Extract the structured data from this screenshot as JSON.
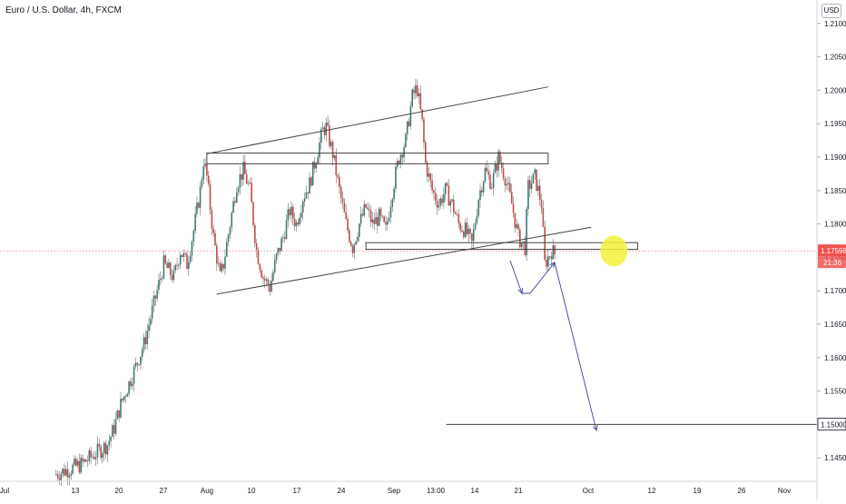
{
  "header": {
    "title": "Euro / U.S. Dollar, 4h, FXCM",
    "currency": "USD"
  },
  "colors": {
    "up": "#3c7a76",
    "down": "#c44a4a",
    "wick": "#555555",
    "drawing_line": "#444444",
    "arrow": "#3f3f9e",
    "highlight": "#f2f23a",
    "price_line": "#ef5350",
    "price_tag_bg": "#ef5350",
    "axis_text": "#131722"
  },
  "chart_data": {
    "type": "candlestick",
    "symbol": "EURUSD",
    "timeframe": "4h",
    "y_ticks": [
      "1.21000",
      "1.20500",
      "1.20000",
      "1.19500",
      "1.19000",
      "1.18500",
      "1.18000",
      "1.17500",
      "1.17000",
      "1.16500",
      "1.16000",
      "1.15500",
      "1.15000",
      "1.14500"
    ],
    "x_ticks": [
      "Jul",
      "13",
      "20",
      "27",
      "Aug",
      "10",
      "17",
      "24",
      "Sep",
      "13:00",
      "14",
      "21",
      "Oct",
      "12",
      "19",
      "26",
      "Nov"
    ],
    "ylim": [
      1.1415,
      1.2135
    ],
    "current_price": 1.17598,
    "current_price_label": "1.17598",
    "countdown_label": "21:36",
    "target_level": 1.15,
    "target_label": "1.15000",
    "price_path": [
      [
        0,
        1.1425
      ],
      [
        4,
        1.144
      ],
      [
        6,
        1.1455
      ],
      [
        8,
        1.147
      ],
      [
        9,
        1.1495
      ],
      [
        10,
        1.153
      ],
      [
        12,
        1.158
      ],
      [
        13.5,
        1.162
      ],
      [
        15,
        1.168
      ],
      [
        16.5,
        1.174
      ],
      [
        18,
        1.172
      ],
      [
        19,
        1.176
      ],
      [
        20,
        1.174
      ],
      [
        21,
        1.179
      ],
      [
        22,
        1.185
      ],
      [
        22.5,
        1.1895
      ],
      [
        23,
        1.187
      ],
      [
        24,
        1.178
      ],
      [
        25,
        1.172
      ],
      [
        25.5,
        1.174
      ],
      [
        26.5,
        1.18
      ],
      [
        27.5,
        1.186
      ],
      [
        28.5,
        1.188
      ],
      [
        29.5,
        1.185
      ],
      [
        30.5,
        1.176
      ],
      [
        31.5,
        1.172
      ],
      [
        32.5,
        1.1705
      ],
      [
        33.5,
        1.175
      ],
      [
        34.5,
        1.178
      ],
      [
        35.5,
        1.182
      ],
      [
        36.5,
        1.18
      ],
      [
        37.5,
        1.184
      ],
      [
        38.5,
        1.186
      ],
      [
        39.5,
        1.19
      ],
      [
        40.5,
        1.194
      ],
      [
        41,
        1.1945
      ],
      [
        42,
        1.1905
      ],
      [
        43,
        1.185
      ],
      [
        44,
        1.18
      ],
      [
        45,
        1.1765
      ],
      [
        46,
        1.18
      ],
      [
        47,
        1.1825
      ],
      [
        48,
        1.18
      ],
      [
        49,
        1.181
      ],
      [
        50,
        1.179
      ],
      [
        51,
        1.185
      ],
      [
        52,
        1.19
      ],
      [
        53,
        1.1925
      ],
      [
        54,
        1.199
      ],
      [
        54.7,
        1.2005
      ],
      [
        55.5,
        1.195
      ],
      [
        56,
        1.189
      ],
      [
        57,
        1.185
      ],
      [
        58,
        1.183
      ],
      [
        59,
        1.185
      ],
      [
        60,
        1.183
      ],
      [
        61,
        1.18
      ],
      [
        62,
        1.179
      ],
      [
        63,
        1.177
      ],
      [
        64,
        1.184
      ],
      [
        65,
        1.188
      ],
      [
        66,
        1.186
      ],
      [
        67,
        1.19
      ],
      [
        68,
        1.187
      ],
      [
        69,
        1.183
      ],
      [
        70,
        1.178
      ],
      [
        71,
        1.1765
      ],
      [
        71.5,
        1.1855
      ],
      [
        72.5,
        1.187
      ],
      [
        73.5,
        1.183
      ],
      [
        74,
        1.174
      ],
      [
        75,
        1.176
      ],
      [
        75.5,
        1.1755
      ]
    ],
    "drawings": {
      "upper_trendline": {
        "from": [
          23,
          1.1905
        ],
        "to": [
          74.5,
          1.2005
        ]
      },
      "lower_trendline": {
        "from": [
          24.5,
          1.1695
        ],
        "to": [
          81,
          1.1795
        ]
      },
      "upper_box": {
        "x": [
          23,
          74.5
        ],
        "y": [
          1.189,
          1.1906
        ]
      },
      "lower_box": {
        "x": [
          47,
          88
        ],
        "y": [
          1.1762,
          1.1772
        ]
      },
      "horizontal_line": {
        "x": [
          55,
          120
        ],
        "y": 1.15
      },
      "highlight_circle": {
        "center": [
          79.5,
          1.1765
        ],
        "label": ""
      },
      "arrow_path": [
        [
          73.5,
          1.1759
        ],
        [
          74.5,
          1.1705
        ],
        [
          77.5,
          1.1758
        ],
        [
          78.5,
          1.176
        ],
        [
          85,
          1.1505
        ]
      ]
    }
  }
}
